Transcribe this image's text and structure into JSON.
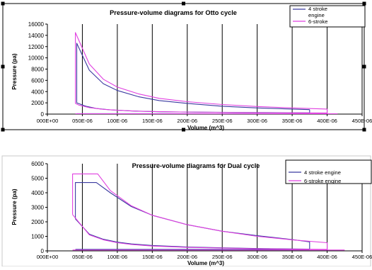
{
  "chart_data": [
    {
      "type": "line",
      "title": "Pressure-volume diagrams for Otto cycle",
      "xlabel": "Volume (m^3)",
      "ylabel": "Pressure (pa)",
      "xlim": [
        0,
        0.00045
      ],
      "ylim": [
        0,
        16000
      ],
      "yticks": [
        "0",
        "2000",
        "4000",
        "6000",
        "8000",
        "10000",
        "12000",
        "14000",
        "16000"
      ],
      "xticks": [
        "000E+00",
        "050E-06",
        "100E-06",
        "150E-06",
        "200E-06",
        "250E-06",
        "300E-06",
        "350E-06",
        "400E-06",
        "450E-06"
      ],
      "grid": "vertical",
      "legend_position": "top-right",
      "series": [
        {
          "name": "4 stroke engine",
          "color": "#3a3aa0",
          "segments": [
            {
              "x": [
                4.2e-05,
                4.2e-05,
                6e-05,
                8e-05,
                0.0001,
                0.00013,
                0.00016,
                0.0002,
                0.00025,
                0.0003,
                0.00035,
                0.000375
              ],
              "y": [
                2000,
                12600,
                7800,
                5400,
                4200,
                3100,
                2400,
                1900,
                1400,
                1100,
                900,
                800
              ]
            },
            {
              "x": [
                0.000375,
                0.000375,
                0.00033,
                0.00028,
                0.00022,
                0.00016,
                0.00012,
                9e-05,
                7e-05,
                5.5e-05,
                4.2e-05
              ],
              "y": [
                800,
                220,
                260,
                290,
                340,
                420,
                560,
                760,
                1000,
                1400,
                2000
              ]
            },
            {
              "x": [
                4.2e-05,
                0.000375
              ],
              "y": [
                80,
                80
              ]
            }
          ]
        },
        {
          "name": "6-stroke",
          "color": "#e040e0",
          "segments": [
            {
              "x": [
                4e-05,
                4e-05,
                6e-05,
                8e-05,
                0.0001,
                0.00013,
                0.00016,
                0.0002,
                0.00025,
                0.0003,
                0.00035,
                0.0004
              ],
              "y": [
                1900,
                14500,
                8900,
                6200,
                4800,
                3600,
                2800,
                2200,
                1700,
                1350,
                1100,
                900
              ]
            },
            {
              "x": [
                0.0004,
                0.0004,
                0.00035,
                0.0003,
                0.00024,
                0.00018,
                0.00013,
                0.0001,
                8e-05,
                6e-05,
                4.5e-05,
                4e-05
              ],
              "y": [
                900,
                200,
                230,
                260,
                310,
                390,
                520,
                680,
                850,
                1150,
                1600,
                1900
              ]
            },
            {
              "x": [
                4e-05,
                0.000415
              ],
              "y": [
                60,
                60
              ]
            }
          ]
        }
      ]
    },
    {
      "type": "line",
      "title": "Pressure-volume diagrams for Dual cycle",
      "xlabel": "Volume (m^3)",
      "ylabel": "Pressure (pa)",
      "xlim": [
        0,
        0.00045
      ],
      "ylim": [
        0,
        6000
      ],
      "yticks": [
        "0",
        "1000",
        "2000",
        "3000",
        "4000",
        "5000",
        "6000"
      ],
      "xticks": [
        "000E+00",
        "050E-06",
        "100E-06",
        "150E-06",
        "200E-06",
        "250E-06",
        "300E-06",
        "350E-06",
        "400E-06",
        "450E-06"
      ],
      "grid": "vertical",
      "legend_position": "top-right",
      "series": [
        {
          "name": "4 stroke engine",
          "color": "#3a3aa0",
          "segments": [
            {
              "x": [
                4e-05,
                4e-05,
                7e-05,
                9e-05,
                0.00012,
                0.00015,
                0.0002,
                0.00025,
                0.0003,
                0.00035,
                0.000375
              ],
              "y": [
                2200,
                4700,
                4700,
                4000,
                3050,
                2450,
                1800,
                1350,
                1050,
                780,
                620
              ]
            },
            {
              "x": [
                0.000375,
                0.000375,
                0.0003,
                0.00025,
                0.0002,
                0.00015,
                0.00012,
                0.0001,
                8e-05,
                6e-05,
                4e-05
              ],
              "y": [
                620,
                120,
                160,
                210,
                270,
                370,
                480,
                600,
                800,
                1150,
                2200
              ]
            },
            {
              "x": [
                4e-05,
                0.000375
              ],
              "y": [
                100,
                100
              ]
            }
          ]
        },
        {
          "name": "6-stroke engine",
          "color": "#e040e0",
          "segments": [
            {
              "x": [
                3.6e-05,
                3.6e-05,
                7.2e-05,
                9e-05,
                0.00012,
                0.00015,
                0.0002,
                0.00025,
                0.0003,
                0.00035,
                0.0004
              ],
              "y": [
                2500,
                5300,
                5300,
                4150,
                3100,
                2450,
                1800,
                1350,
                1000,
                760,
                560
              ]
            },
            {
              "x": [
                0.0004,
                0.0004,
                0.00035,
                0.0003,
                0.00025,
                0.0002,
                0.00015,
                0.00012,
                0.0001,
                8e-05,
                6e-05,
                3.6e-05
              ],
              "y": [
                560,
                100,
                120,
                150,
                190,
                240,
                330,
                440,
                560,
                760,
                1100,
                2500
              ]
            },
            {
              "x": [
                3.6e-05,
                0.000425
              ],
              "y": [
                60,
                60
              ]
            }
          ]
        }
      ]
    }
  ]
}
